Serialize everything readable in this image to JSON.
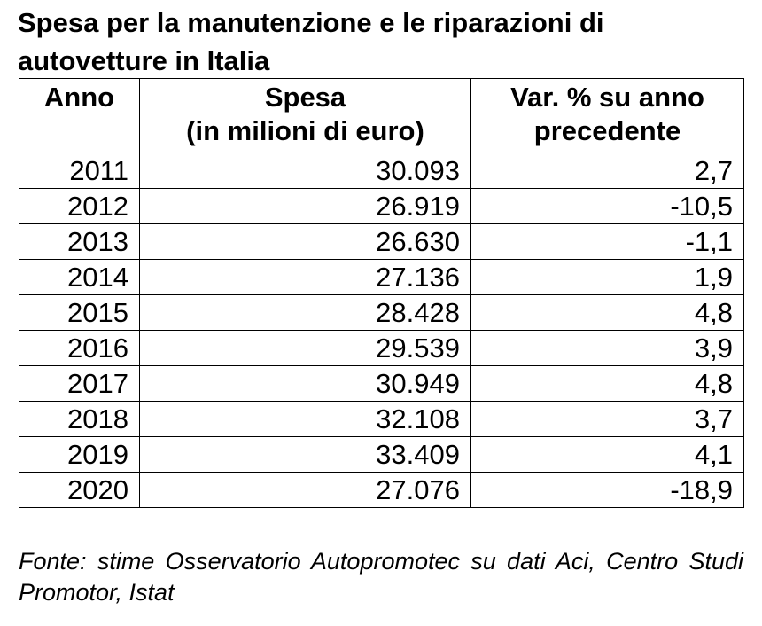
{
  "title": "Spesa per la manutenzione e le riparazioni di autovetture in Italia",
  "source": "Fonte: stime Osservatorio Autopromotec su dati Aci, Centro Studi Promotor, Istat",
  "chart_data": {
    "type": "table",
    "title": "Spesa per la manutenzione e le riparazioni di autovetture in Italia",
    "columns": [
      {
        "line1": "Anno",
        "line2": ""
      },
      {
        "line1": "Spesa",
        "line2": "(in milioni di euro)"
      },
      {
        "line1": "Var. % su anno",
        "line2": "precedente"
      }
    ],
    "rows": [
      [
        "2011",
        "30.093",
        "2,7"
      ],
      [
        "2012",
        "26.919",
        "-10,5"
      ],
      [
        "2013",
        "26.630",
        "-1,1"
      ],
      [
        "2014",
        "27.136",
        "1,9"
      ],
      [
        "2015",
        "28.428",
        "4,8"
      ],
      [
        "2016",
        "29.539",
        "3,9"
      ],
      [
        "2017",
        "30.949",
        "4,8"
      ],
      [
        "2018",
        "32.108",
        "3,7"
      ],
      [
        "2019",
        "33.409",
        "4,1"
      ],
      [
        "2020",
        "27.076",
        "-18,9"
      ]
    ]
  }
}
